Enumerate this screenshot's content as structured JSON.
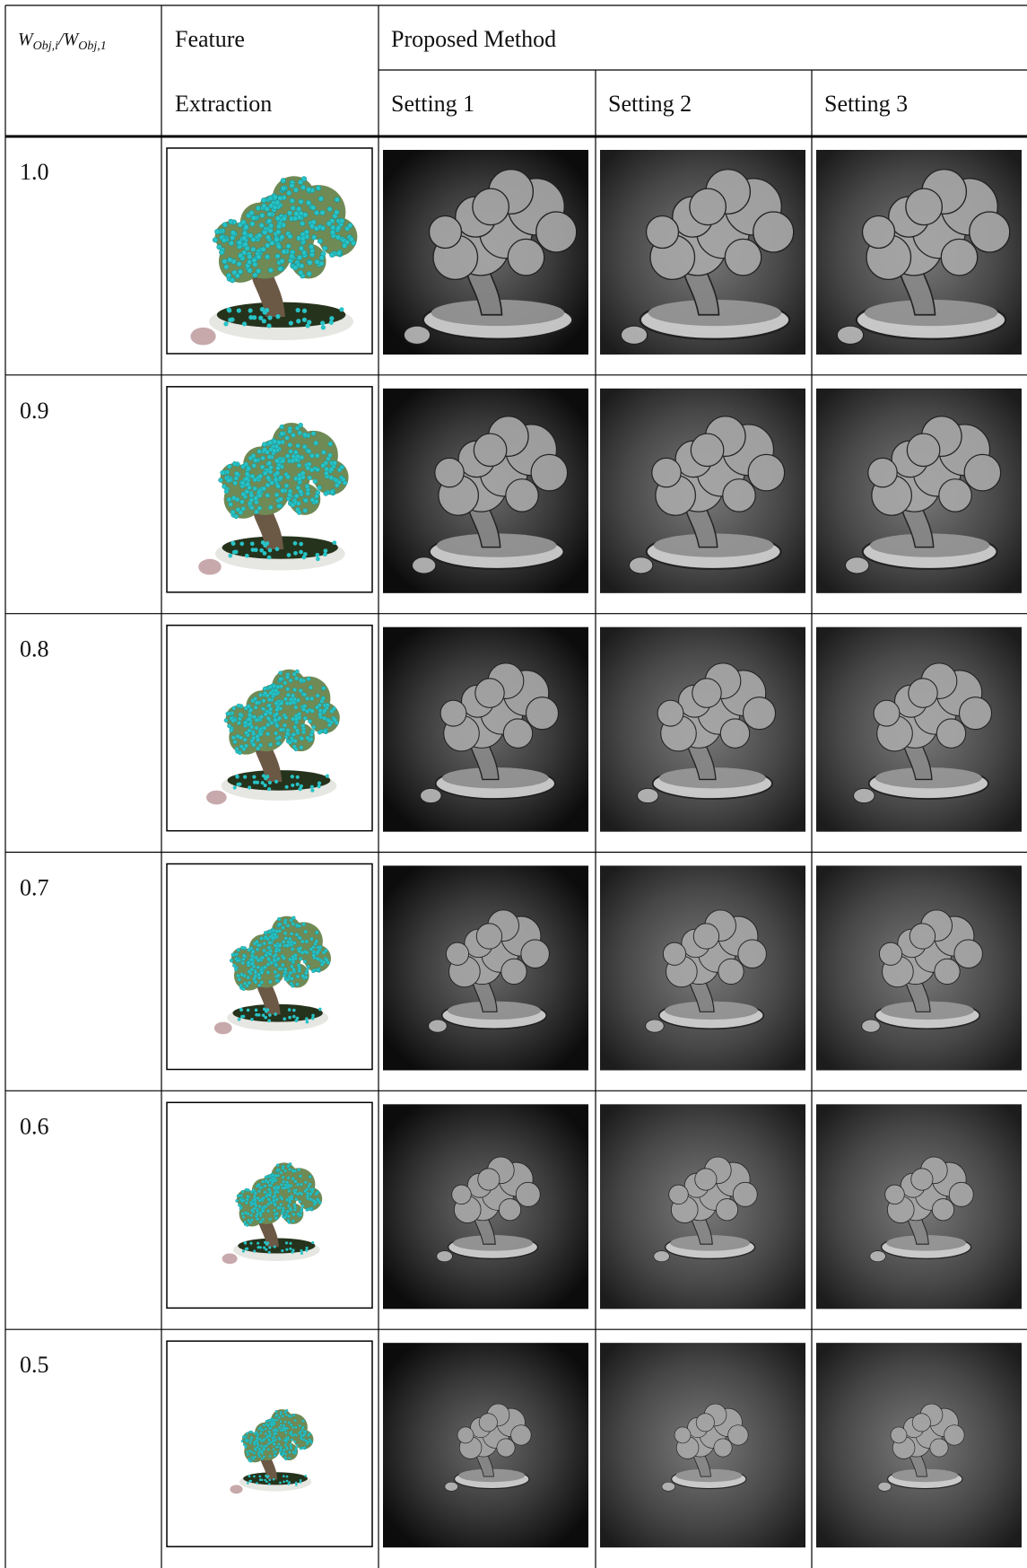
{
  "header": {
    "ratio": [
      "W",
      "Obj,i",
      "/W",
      "Obj,1"
    ],
    "feature": [
      "Feature",
      "Extraction"
    ],
    "proposed": "Proposed Method",
    "settings": [
      "Setting 1",
      "Setting 2",
      "Setting 3"
    ]
  },
  "rows": [
    "1.0",
    "0.9",
    "0.8",
    "0.7",
    "0.6",
    "0.5"
  ]
}
